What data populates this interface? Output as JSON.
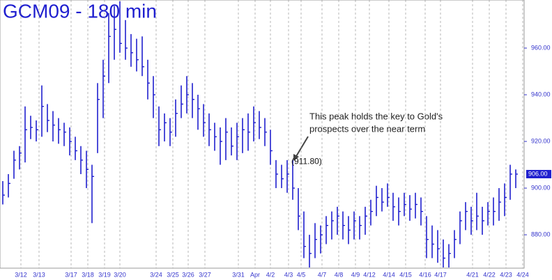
{
  "chart_data": {
    "type": "ohlc",
    "title": "GCM09 - 180 min",
    "annotation": [
      "This peak holds the key to Gold's",
      "prospects over the near term"
    ],
    "peak": {
      "x": 103,
      "value": 911.8,
      "label": "(911.80)"
    },
    "last_price": {
      "value": 906,
      "label": "906.00"
    },
    "color": "#1f1fcf",
    "xlim": [
      0,
      188
    ],
    "xticks": [
      {
        "value": 7.5,
        "label": "3/12"
      },
      {
        "value": 14,
        "label": "3/13"
      },
      {
        "value": 25.5,
        "label": "3/17"
      },
      {
        "value": 31.5,
        "label": "3/18"
      },
      {
        "value": 37.5,
        "label": "3/19"
      },
      {
        "value": 43,
        "label": "3/20"
      },
      {
        "value": 56,
        "label": "3/24"
      },
      {
        "value": 62,
        "label": "3/25"
      },
      {
        "value": 67.5,
        "label": "3/26"
      },
      {
        "value": 73.5,
        "label": "3/27"
      },
      {
        "value": 85.5,
        "label": "3/31"
      },
      {
        "value": 91.5,
        "label": "Apr"
      },
      {
        "value": 97,
        "label": "4/2"
      },
      {
        "value": 103.5,
        "label": "4/3"
      },
      {
        "value": 108,
        "label": "4/5"
      },
      {
        "value": 115.5,
        "label": "4/7"
      },
      {
        "value": 121.5,
        "label": "4/8"
      },
      {
        "value": 127.5,
        "label": "4/9"
      },
      {
        "value": 132.5,
        "label": "4/12"
      },
      {
        "value": 139.5,
        "label": "4/14"
      },
      {
        "value": 145.5,
        "label": "4/15"
      },
      {
        "value": 152.5,
        "label": "4/16"
      },
      {
        "value": 158,
        "label": "4/17"
      },
      {
        "value": 169.5,
        "label": "4/21"
      },
      {
        "value": 175.5,
        "label": "4/22"
      },
      {
        "value": 181.5,
        "label": "4/23"
      },
      {
        "value": 187.5,
        "label": "4/24"
      }
    ],
    "ylim": [
      865.7,
      980.6
    ],
    "yticks": [
      {
        "value": 880,
        "label": "880.00"
      },
      {
        "value": 900,
        "label": "900.00"
      },
      {
        "value": 920,
        "label": "920.00"
      },
      {
        "value": 940,
        "label": "940.00"
      },
      {
        "value": 960,
        "label": "960.00"
      }
    ],
    "x": [
      1,
      3,
      5,
      7,
      9,
      11,
      13,
      15,
      17,
      19,
      21,
      23,
      25,
      27,
      29,
      31,
      33,
      35,
      37,
      39,
      41,
      43,
      45,
      47,
      49,
      51,
      53,
      55,
      57,
      59,
      61,
      63,
      65,
      67,
      69,
      71,
      73,
      75,
      77,
      79,
      81,
      83,
      85,
      87,
      89,
      91,
      93,
      95,
      97,
      99,
      101,
      103,
      105,
      107,
      109,
      111,
      113,
      115,
      117,
      119,
      121,
      123,
      125,
      127,
      129,
      131,
      133,
      135,
      137,
      139,
      141,
      143,
      145,
      147,
      149,
      151,
      153,
      155,
      157,
      159,
      161,
      163,
      165,
      167,
      169,
      171,
      173,
      175,
      177,
      179,
      181,
      183,
      185
    ],
    "high": [
      903,
      906,
      916,
      918,
      935,
      931,
      929,
      944,
      936,
      933,
      930,
      928,
      926,
      922,
      918,
      916,
      910,
      945,
      955,
      975,
      978,
      980,
      972,
      966,
      964,
      965,
      955,
      948,
      935,
      932,
      930,
      938,
      944,
      948,
      945,
      940,
      936,
      932,
      928,
      926,
      930,
      926,
      928,
      930,
      932,
      935,
      933,
      930,
      925,
      912,
      910,
      912,
      912,
      900,
      890,
      880,
      885,
      884,
      888,
      890,
      892,
      890,
      888,
      890,
      888,
      892,
      895,
      901,
      900,
      902,
      898,
      896,
      898,
      897,
      898,
      896,
      888,
      884,
      882,
      878,
      876,
      882,
      890,
      894,
      892,
      898,
      892,
      894,
      896,
      900,
      902,
      910,
      908
    ],
    "low": [
      893,
      896,
      904,
      908,
      911,
      921,
      920,
      922,
      924,
      920,
      919,
      918,
      914,
      912,
      906,
      900,
      885,
      915,
      930,
      945,
      955,
      958,
      955,
      952,
      950,
      948,
      938,
      930,
      918,
      920,
      918,
      922,
      930,
      932,
      930,
      925,
      922,
      918,
      916,
      910,
      912,
      914,
      912,
      915,
      916,
      920,
      921,
      918,
      910,
      900,
      900,
      898,
      895,
      882,
      870,
      866,
      870,
      872,
      876,
      878,
      880,
      878,
      876,
      878,
      878,
      880,
      884,
      888,
      890,
      892,
      886,
      884,
      888,
      886,
      887,
      884,
      870,
      870,
      868,
      866,
      866,
      870,
      876,
      882,
      880,
      882,
      880,
      884,
      884,
      886,
      888,
      895,
      900
    ],
    "close": [
      897,
      902,
      912,
      915,
      925,
      926,
      925,
      935,
      929,
      927,
      925,
      924,
      920,
      916,
      912,
      908,
      905,
      938,
      948,
      965,
      968,
      962,
      960,
      958,
      955,
      952,
      945,
      940,
      925,
      928,
      924,
      932,
      936,
      940,
      938,
      934,
      928,
      925,
      922,
      920,
      924,
      918,
      922,
      925,
      924,
      928,
      926,
      924,
      916,
      906,
      904,
      906,
      900,
      888,
      875,
      872,
      878,
      880,
      884,
      886,
      888,
      884,
      882,
      886,
      884,
      888,
      890,
      896,
      894,
      896,
      892,
      890,
      893,
      891,
      893,
      890,
      878,
      876,
      874,
      870,
      872,
      878,
      886,
      890,
      886,
      888,
      886,
      890,
      890,
      894,
      896,
      906,
      906
    ]
  }
}
